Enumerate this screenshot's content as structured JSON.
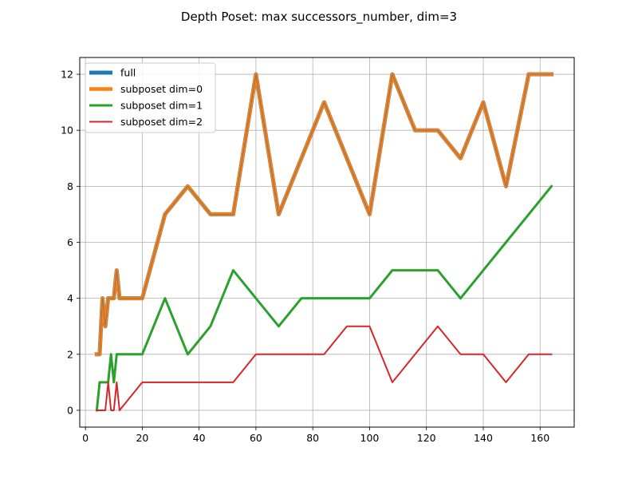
{
  "chart_data": {
    "type": "line",
    "title": "Depth Poset: max successors_number, dim=3",
    "xlabel": "",
    "ylabel": "",
    "xlim": [
      -2.0,
      172.0
    ],
    "ylim": [
      -0.6,
      12.6
    ],
    "xticks": [
      0,
      20,
      40,
      60,
      80,
      100,
      120,
      140,
      160
    ],
    "yticks": [
      0,
      2,
      4,
      6,
      8,
      10,
      12
    ],
    "grid": true,
    "legend_position": "upper-left",
    "series": [
      {
        "name": "full",
        "color": "#1f77b4",
        "x": [
          4,
          5,
          6,
          7,
          8,
          9,
          10,
          11,
          12,
          20,
          28,
          36,
          44,
          52,
          60,
          68,
          76,
          84,
          92,
          100,
          108,
          116,
          124,
          132,
          140,
          148,
          156,
          164
        ],
        "y": [
          2,
          2,
          4,
          3,
          4,
          4,
          4,
          5,
          4,
          4,
          7,
          8,
          7,
          7,
          12,
          7,
          9,
          11,
          9,
          7,
          12,
          10,
          10,
          9,
          11,
          8,
          12,
          12
        ]
      },
      {
        "name": "subposet dim=0",
        "color": "#ff7f0e",
        "x": [
          4,
          5,
          6,
          7,
          8,
          9,
          10,
          11,
          12,
          20,
          28,
          36,
          44,
          52,
          60,
          68,
          76,
          84,
          92,
          100,
          108,
          116,
          124,
          132,
          140,
          148,
          156,
          164
        ],
        "y": [
          2,
          2,
          4,
          3,
          4,
          4,
          4,
          5,
          4,
          4,
          7,
          8,
          7,
          7,
          12,
          7,
          9,
          11,
          9,
          7,
          12,
          10,
          10,
          9,
          11,
          8,
          12,
          12
        ]
      },
      {
        "name": "subposet dim=1",
        "color": "#2ca02c",
        "x": [
          4,
          5,
          6,
          7,
          8,
          9,
          10,
          11,
          12,
          20,
          28,
          36,
          44,
          52,
          60,
          68,
          76,
          84,
          92,
          100,
          108,
          116,
          124,
          132,
          140,
          148,
          156,
          164
        ],
        "y": [
          0,
          1,
          1,
          1,
          1,
          2,
          1,
          2,
          2,
          2,
          4,
          2,
          3,
          5,
          4,
          3,
          4,
          4,
          4,
          4,
          5,
          5,
          5,
          4,
          5,
          6,
          7,
          8
        ]
      },
      {
        "name": "subposet dim=2",
        "color": "#d62728",
        "x": [
          4,
          5,
          6,
          7,
          8,
          9,
          10,
          11,
          12,
          20,
          28,
          36,
          44,
          52,
          60,
          68,
          76,
          84,
          92,
          100,
          108,
          116,
          124,
          132,
          140,
          148,
          156,
          164
        ],
        "y": [
          0,
          0,
          0,
          0,
          1,
          0,
          0,
          1,
          0,
          1,
          1,
          1,
          1,
          1,
          2,
          2,
          2,
          2,
          3,
          3,
          1,
          2,
          3,
          2,
          2,
          1,
          2,
          2
        ]
      }
    ]
  }
}
